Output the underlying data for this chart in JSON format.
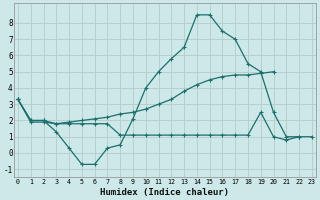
{
  "xlabel": "Humidex (Indice chaleur)",
  "bg_color": "#cde8e8",
  "grid_color": "#b8d0cc",
  "line_color": "#1e6e6e",
  "curve_high_x": [
    0,
    1,
    2,
    3,
    4,
    5,
    6,
    7,
    8,
    9,
    10,
    11,
    12,
    13,
    14,
    15,
    16,
    17,
    18,
    19,
    20,
    21,
    22
  ],
  "curve_high_y": [
    3.3,
    2.0,
    2.0,
    1.3,
    0.3,
    -0.7,
    -0.7,
    0.3,
    0.5,
    2.1,
    4.0,
    5.0,
    5.8,
    6.5,
    8.5,
    8.5,
    7.5,
    7.0,
    5.5,
    5.0,
    2.5,
    1.0,
    1.0
  ],
  "curve_diag_x": [
    0,
    1,
    2,
    3,
    4,
    5,
    6,
    7,
    8,
    9,
    10,
    11,
    12,
    13,
    14,
    15,
    16,
    17,
    18,
    19,
    20
  ],
  "curve_diag_y": [
    3.3,
    2.0,
    2.0,
    1.8,
    1.9,
    2.0,
    2.1,
    2.2,
    2.4,
    2.5,
    2.7,
    3.0,
    3.3,
    3.8,
    4.2,
    4.5,
    4.7,
    4.8,
    4.8,
    4.9,
    5.0
  ],
  "curve_flat_x": [
    0,
    1,
    2,
    3,
    4,
    5,
    6,
    7,
    8,
    9,
    10,
    11,
    12,
    13,
    14,
    15,
    16,
    17,
    18,
    19,
    20,
    21,
    22,
    23
  ],
  "curve_flat_y": [
    3.3,
    1.9,
    1.9,
    1.8,
    1.8,
    1.8,
    1.8,
    1.8,
    1.1,
    1.1,
    1.1,
    1.1,
    1.1,
    1.1,
    1.1,
    1.1,
    1.1,
    1.1,
    1.1,
    2.5,
    1.0,
    0.8,
    1.0,
    1.0
  ],
  "xlim": [
    -0.3,
    23.3
  ],
  "ylim": [
    -1.5,
    9.2
  ],
  "yticks": [
    -1,
    0,
    1,
    2,
    3,
    4,
    5,
    6,
    7,
    8
  ],
  "xticks": [
    0,
    1,
    2,
    3,
    4,
    5,
    6,
    7,
    8,
    9,
    10,
    11,
    12,
    13,
    14,
    15,
    16,
    17,
    18,
    19,
    20,
    21,
    22,
    23
  ]
}
